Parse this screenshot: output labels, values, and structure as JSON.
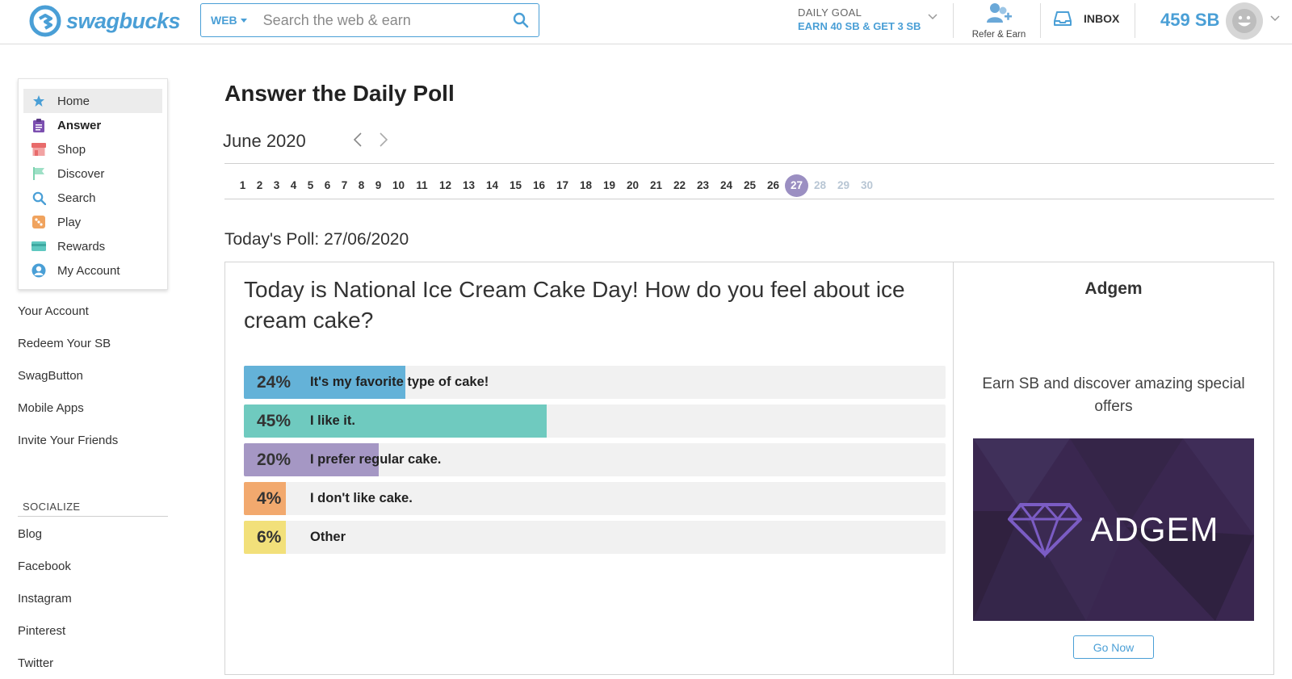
{
  "header": {
    "logo_text": "swagbucks",
    "search": {
      "scope": "WEB",
      "placeholder": "Search the web & earn"
    },
    "daily_goal": {
      "title": "DAILY GOAL",
      "text": "EARN 40 SB & GET 3 SB"
    },
    "refer_label": "Refer & Earn",
    "inbox_label": "INBOX",
    "balance": "459 SB",
    "accent_color": "#4a9fd6"
  },
  "sidebar": {
    "nav": [
      {
        "label": "Home",
        "icon": "star-icon",
        "color": "#4a9fd6"
      },
      {
        "label": "Answer",
        "icon": "clipboard-icon",
        "color": "#7c4fb0"
      },
      {
        "label": "Shop",
        "icon": "store-icon",
        "color": "#e86b6b"
      },
      {
        "label": "Discover",
        "icon": "flag-icon",
        "color": "#7dd3b0"
      },
      {
        "label": "Search",
        "icon": "search-icon",
        "color": "#4a9fd6"
      },
      {
        "label": "Play",
        "icon": "dice-icon",
        "color": "#f0a35e"
      },
      {
        "label": "Rewards",
        "icon": "card-icon",
        "color": "#5ec8c0"
      },
      {
        "label": "My Account",
        "icon": "user-icon",
        "color": "#4a9fd6"
      }
    ],
    "links": [
      "Your Account",
      "Redeem Your SB",
      "SwagButton",
      "Mobile Apps",
      "Invite Your Friends"
    ],
    "social_heading": "SOCIALIZE",
    "social": [
      "Blog",
      "Facebook",
      "Instagram",
      "Pinterest",
      "Twitter"
    ]
  },
  "main": {
    "title": "Answer the Daily Poll",
    "month": "June 2020",
    "days": [
      "1",
      "2",
      "3",
      "4",
      "5",
      "6",
      "7",
      "8",
      "9",
      "10",
      "11",
      "12",
      "13",
      "14",
      "15",
      "16",
      "17",
      "18",
      "19",
      "20",
      "21",
      "22",
      "23",
      "24",
      "25",
      "26",
      "27",
      "28",
      "29",
      "30"
    ],
    "today": "27",
    "poll_date": "Today's Poll: 27/06/2020",
    "question": "Today is National Ice Cream Cake Day! How do you feel about ice cream cake?",
    "options": [
      {
        "pct_label": "24%",
        "percent": 24,
        "text": "It's my favorite type of cake!",
        "color": "#64b2d8"
      },
      {
        "pct_label": "45%",
        "percent": 45,
        "text": "I like it.",
        "color": "#6fcabf"
      },
      {
        "pct_label": "20%",
        "percent": 20,
        "text": "I prefer regular cake.",
        "color": "#a597c4"
      },
      {
        "pct_label": "4%",
        "percent": 4,
        "text": "I don't like cake.",
        "color": "#f2a96e"
      },
      {
        "pct_label": "6%",
        "percent": 6,
        "text": "Other",
        "color": "#f2e07a"
      }
    ]
  },
  "ad": {
    "title": "Adgem",
    "description": "Earn SB and discover amazing special offers",
    "logo_text": "ADGEM",
    "button_label": "Go Now"
  }
}
